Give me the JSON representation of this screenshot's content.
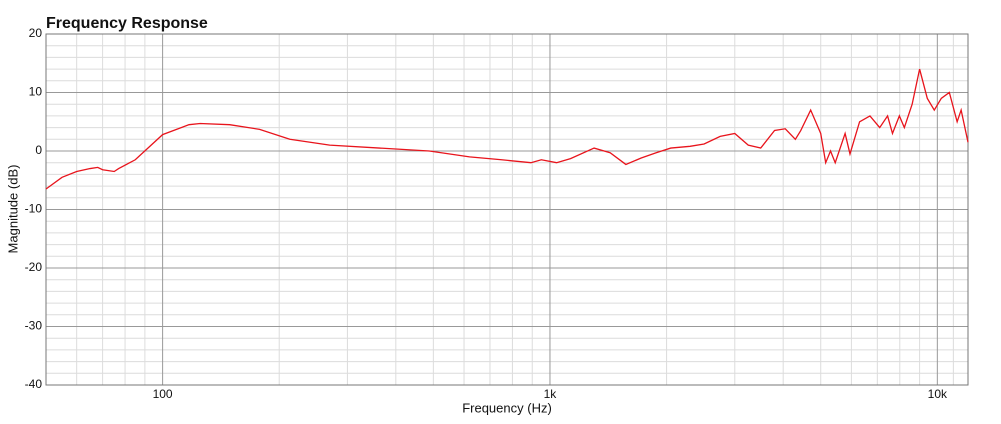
{
  "chart_data": {
    "type": "line",
    "title": "Frequency Response",
    "x_label": "Frequency (Hz)",
    "y_label": "Magnitude (dB)",
    "x_scale": "log",
    "grid": true,
    "xlim": [
      50,
      12000
    ],
    "ylim": [
      -40,
      20
    ],
    "xticks": [
      {
        "value": 100,
        "label": "100"
      },
      {
        "value": 1000,
        "label": "1k"
      },
      {
        "value": 10000,
        "label": "10k"
      }
    ],
    "yticks": [
      20,
      10,
      0,
      -10,
      -20,
      -30,
      -40
    ],
    "minor_xticks": [
      60,
      70,
      80,
      90,
      200,
      300,
      400,
      500,
      600,
      700,
      800,
      900,
      2000,
      3000,
      4000,
      5000,
      6000,
      7000,
      8000,
      9000,
      11000
    ],
    "minor_yticks": [
      18,
      16,
      14,
      12,
      8,
      6,
      4,
      2,
      -2,
      -4,
      -6,
      -8,
      -12,
      -14,
      -16,
      -18,
      -22,
      -24,
      -26,
      -28,
      -32,
      -34,
      -36,
      -38
    ],
    "x": [
      50,
      55,
      60,
      65,
      68,
      70,
      75,
      77,
      85,
      100,
      117,
      125,
      149,
      178,
      213,
      270,
      363,
      488,
      620,
      750,
      893,
      950,
      1040,
      1130,
      1300,
      1430,
      1570,
      1720,
      1880,
      2050,
      2300,
      2500,
      2750,
      3000,
      3250,
      3500,
      3800,
      4050,
      4300,
      4440,
      4710,
      5000,
      5150,
      5300,
      5450,
      5780,
      5950,
      6300,
      6700,
      7100,
      7440,
      7660,
      7980,
      8220,
      8610,
      9000,
      9420,
      9820,
      10240,
      10740,
      11250,
      11520,
      12000
    ],
    "series": [
      {
        "name": "Magnitude",
        "color": "#e8141c",
        "values": [
          -6.5,
          -4.5,
          -3.5,
          -3.0,
          -2.8,
          -3.2,
          -3.5,
          -3.0,
          -1.5,
          2.8,
          4.5,
          4.7,
          4.5,
          3.7,
          2.0,
          1.0,
          0.5,
          0.0,
          -1.0,
          -1.5,
          -2.0,
          -1.5,
          -2.0,
          -1.3,
          0.5,
          -0.3,
          -2.3,
          -1.2,
          -0.3,
          0.5,
          0.8,
          1.2,
          2.5,
          3.0,
          1.0,
          0.5,
          3.5,
          3.8,
          2.0,
          3.5,
          7.0,
          3.0,
          -2.0,
          0.0,
          -2.0,
          3.0,
          -0.5,
          5.0,
          6.0,
          4.0,
          6.0,
          3.0,
          6.0,
          4.0,
          8.0,
          14.0,
          9.0,
          7.0,
          9.0,
          10.0,
          5.0,
          7.0,
          1.5
        ]
      }
    ]
  }
}
